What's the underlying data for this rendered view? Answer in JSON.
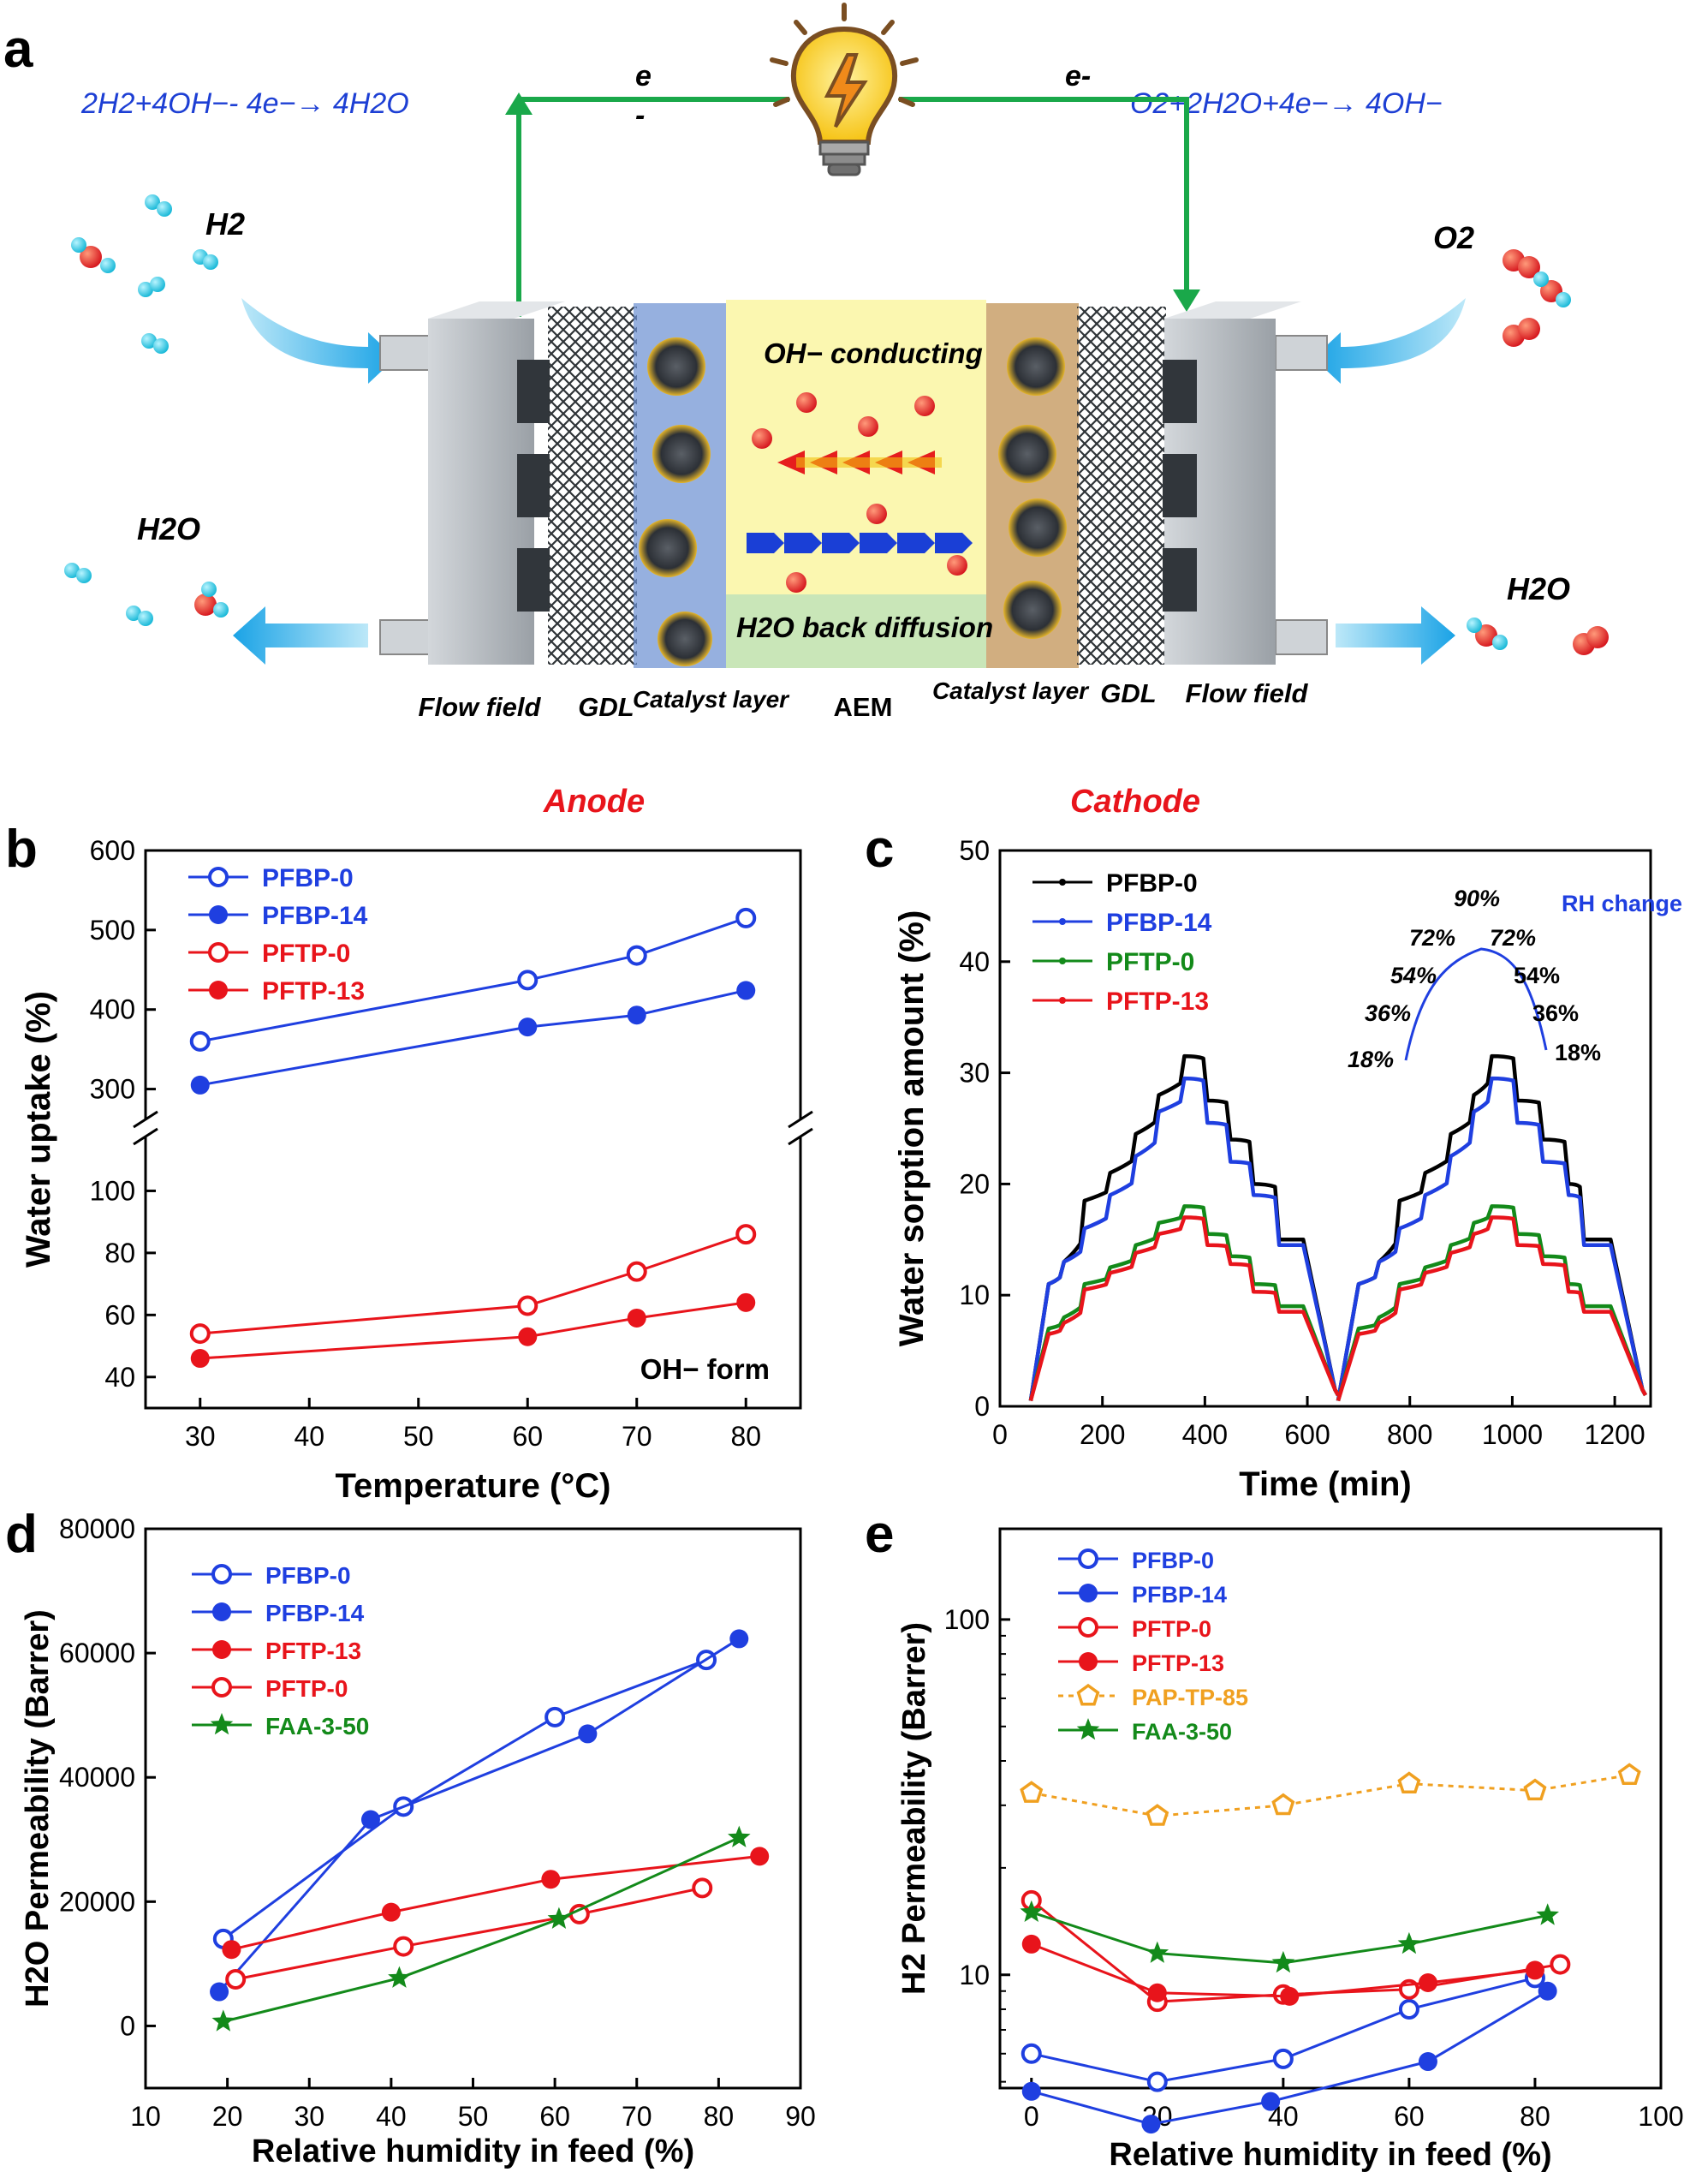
{
  "colors": {
    "blue": "#1f3fe0",
    "red": "#e8141b",
    "green": "#138a1a",
    "black": "#000000",
    "orange": "#f0a020",
    "eq_blue": "#1d3fd4",
    "wire_green": "#1aa84a",
    "aem_yellow": "#fbf7b0",
    "aem_green": "#c9e6b8",
    "plate_grey": "#b9bec4",
    "cyan": "#20c7e0"
  },
  "panel_a": {
    "label": "a",
    "anode_eq": "2H2+4OH−- 4e−→ 4H2O",
    "cathode_eq": "O2+2H2O+4e−→ 4OH−",
    "e_left": "e",
    "e_left_minus": "-",
    "e_right": "e-",
    "bulb_icon": "lightbulb-icon",
    "h2_in": "H2",
    "o2_in": "O2",
    "h2o_out_left": "H2O",
    "h2o_out_right": "H2O",
    "oh_conducting": "OH− conducting",
    "back_diffusion": "H2O back diffusion",
    "layers": [
      "Flow field",
      "GDL",
      "Catalyst layer",
      "AEM",
      "Catalyst layer",
      "GDL",
      "Flow field"
    ],
    "anode": "Anode",
    "cathode": "Cathode"
  },
  "chart_data": [
    {
      "panel": "b",
      "type": "line",
      "xlabel": "Temperature (°C)",
      "ylabel": "Water uptake (%)",
      "xlim": [
        25,
        85
      ],
      "ylim_lower": [
        30,
        120
      ],
      "ylim_upper": [
        250,
        600
      ],
      "xticks": [
        30,
        40,
        50,
        60,
        70,
        80
      ],
      "yticks_lower": [
        40,
        60,
        80,
        100
      ],
      "yticks_upper": [
        300,
        400,
        500,
        600
      ],
      "annotation": "OH− form",
      "legend": [
        "PFBP-0",
        "PFBP-14",
        "PFTP-0",
        "PFTP-13"
      ],
      "series": [
        {
          "name": "PFBP-0",
          "color": "blue",
          "marker": "open-circle",
          "x": [
            30,
            60,
            70,
            80
          ],
          "y": [
            360,
            437,
            468,
            515
          ]
        },
        {
          "name": "PFBP-14",
          "color": "blue",
          "marker": "filled-circle",
          "x": [
            30,
            60,
            70,
            80
          ],
          "y": [
            305,
            378,
            393,
            424
          ]
        },
        {
          "name": "PFTP-0",
          "color": "red",
          "marker": "open-circle",
          "x": [
            30,
            60,
            70,
            80
          ],
          "y": [
            54,
            63,
            74,
            86
          ]
        },
        {
          "name": "PFTP-13",
          "color": "red",
          "marker": "filled-circle",
          "x": [
            30,
            60,
            70,
            80
          ],
          "y": [
            46,
            53,
            59,
            64
          ]
        }
      ]
    },
    {
      "panel": "c",
      "type": "line",
      "xlabel": "Time (min)",
      "ylabel": "Water sorption amount (%)",
      "xlim": [
        0,
        1270
      ],
      "ylim": [
        0,
        50
      ],
      "xticks": [
        0,
        200,
        400,
        600,
        800,
        1000,
        1200
      ],
      "yticks": [
        0,
        10,
        20,
        30,
        40,
        50
      ],
      "legend": [
        "PFBP-0",
        "PFBP-14",
        "PFTP-0",
        "PFTP-13"
      ],
      "inset_title": "RH change",
      "inset_labels": [
        "18%",
        "36%",
        "54%",
        "72%",
        "90%",
        "72%",
        "54%",
        "36%",
        "18%"
      ],
      "series": [
        {
          "name": "PFBP-0",
          "color": "black",
          "steps": [
            11,
            13,
            18.5,
            21,
            24.5,
            28,
            31.5,
            27.5,
            24,
            20,
            15
          ]
        },
        {
          "name": "PFBP-14",
          "color": "blue",
          "steps": [
            11,
            13,
            16,
            19,
            22.5,
            26.5,
            29.5,
            25.5,
            22,
            19,
            14.5
          ]
        },
        {
          "name": "PFTP-0",
          "color": "green",
          "steps": [
            7,
            8,
            11,
            12.5,
            14.5,
            16.5,
            18,
            15.5,
            13.5,
            11,
            9
          ]
        },
        {
          "name": "PFTP-13",
          "color": "red",
          "steps": [
            6.5,
            7.5,
            10.5,
            12,
            13.8,
            15.5,
            17,
            14.5,
            12.8,
            10.3,
            8.5
          ]
        }
      ]
    },
    {
      "panel": "d",
      "type": "line",
      "xlabel": "Relative humidity in feed (%)",
      "ylabel": "H2O Permeability (Barrer)",
      "xlim": [
        10,
        90
      ],
      "ylim": [
        -10000,
        80000
      ],
      "xticks": [
        10,
        20,
        30,
        40,
        50,
        60,
        70,
        80,
        90
      ],
      "yticks": [
        0,
        20000,
        40000,
        60000,
        80000
      ],
      "legend": [
        "PFBP-0",
        "PFBP-14",
        "PFTP-13",
        "PFTP-0",
        "FAA-3-50"
      ],
      "series": [
        {
          "name": "PFBP-0",
          "color": "blue",
          "marker": "open-circle",
          "x": [
            19.5,
            41.5,
            60,
            78.5
          ],
          "y": [
            14000,
            35300,
            49700,
            58900
          ]
        },
        {
          "name": "PFBP-14",
          "color": "blue",
          "marker": "filled-circle",
          "x": [
            19,
            37.5,
            64,
            82.5
          ],
          "y": [
            5500,
            33200,
            47000,
            62300
          ]
        },
        {
          "name": "PFTP-13",
          "color": "red",
          "marker": "filled-circle",
          "x": [
            20.5,
            40,
            59.5,
            85
          ],
          "y": [
            12300,
            18300,
            23600,
            27300
          ]
        },
        {
          "name": "PFTP-0",
          "color": "red",
          "marker": "open-circle",
          "x": [
            21,
            41.5,
            63,
            78
          ],
          "y": [
            7500,
            12800,
            18000,
            22200
          ]
        },
        {
          "name": "FAA-3-50",
          "color": "green",
          "marker": "star",
          "x": [
            19.5,
            41,
            60.5,
            82.5
          ],
          "y": [
            700,
            7700,
            17200,
            30300
          ]
        }
      ]
    },
    {
      "panel": "e",
      "type": "line",
      "xlabel": "Relative humidity in feed (%)",
      "ylabel": "H2 Permeability (Barrer)",
      "xlim": [
        -5,
        100
      ],
      "ylog_range": [
        4.8,
        180
      ],
      "xticks": [
        0,
        20,
        40,
        60,
        80,
        100
      ],
      "yticks": [
        10,
        100
      ],
      "legend": [
        "PFBP-0",
        "PFBP-14",
        "PFTP-0",
        "PFTP-13",
        "PAP-TP-85",
        "FAA-3-50"
      ],
      "series": [
        {
          "name": "PFBP-0",
          "color": "blue",
          "marker": "open-circle",
          "x": [
            0,
            20,
            40,
            60,
            80
          ],
          "y": [
            6.0,
            5.0,
            5.8,
            8.0,
            9.8
          ]
        },
        {
          "name": "PFBP-14",
          "color": "blue",
          "marker": "filled-circle",
          "x": [
            0,
            19,
            38,
            63,
            82
          ],
          "y": [
            4.7,
            3.8,
            4.4,
            5.7,
            9.0
          ]
        },
        {
          "name": "PFTP-0",
          "color": "red",
          "marker": "open-circle",
          "x": [
            0,
            20,
            40,
            60,
            84
          ],
          "y": [
            16.2,
            8.4,
            8.8,
            9.1,
            10.7
          ]
        },
        {
          "name": "PFTP-13",
          "color": "red",
          "marker": "filled-circle",
          "x": [
            0,
            20,
            41,
            63,
            80
          ],
          "y": [
            12.2,
            8.9,
            8.7,
            9.5,
            10.3
          ]
        },
        {
          "name": "PAP-TP-85",
          "color": "orange",
          "marker": "open-pentagon",
          "x": [
            0,
            20,
            40,
            60,
            80,
            95
          ],
          "y": [
            32.5,
            28,
            30,
            34.5,
            33,
            36.5
          ]
        },
        {
          "name": "FAA-3-50",
          "color": "green",
          "marker": "star",
          "x": [
            0,
            20,
            40,
            60,
            82
          ],
          "y": [
            15.0,
            11.5,
            10.8,
            12.2,
            14.7
          ]
        }
      ]
    }
  ]
}
